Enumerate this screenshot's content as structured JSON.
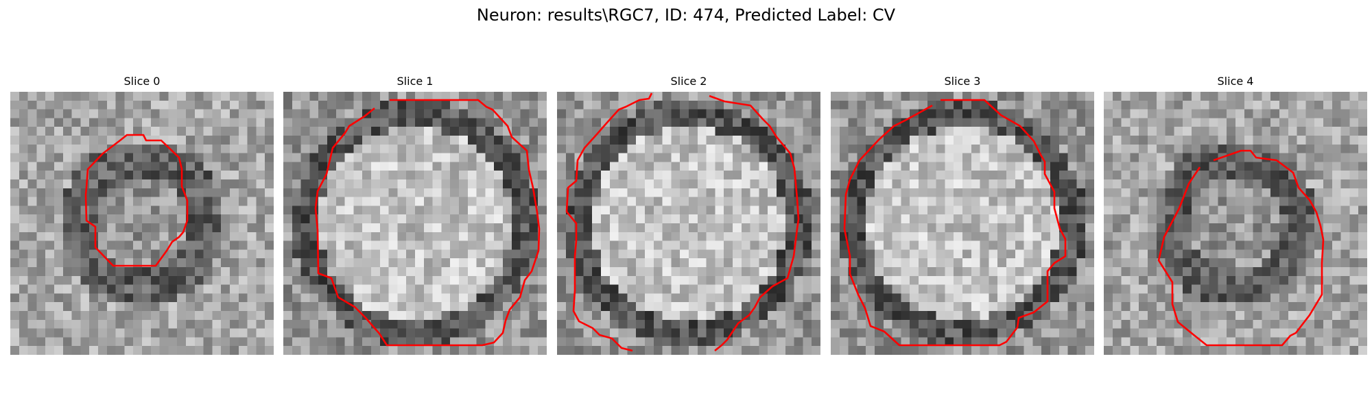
{
  "figure": {
    "title": "Neuron: results\\RGC7, ID: 474, Predicted Label: CV",
    "contour_color": "#ff0000",
    "image_colormap": "gray",
    "grid_size": 30,
    "panels": [
      {
        "title": "Slice 0",
        "texture": "ring-small"
      },
      {
        "title": "Slice 1",
        "texture": "bright-large"
      },
      {
        "title": "Slice 2",
        "texture": "bright-large"
      },
      {
        "title": "Slice 3",
        "texture": "bright-large"
      },
      {
        "title": "Slice 4",
        "texture": "ring-small"
      }
    ]
  }
}
